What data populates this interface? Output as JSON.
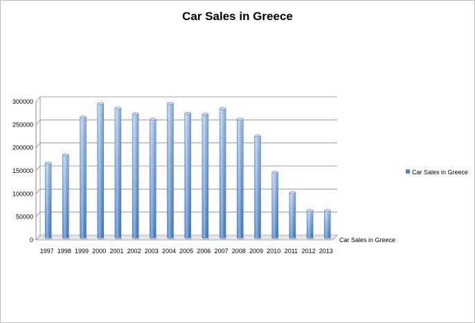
{
  "chart_data": {
    "type": "bar",
    "title": "Car Sales in Greece",
    "categories": [
      "1997",
      "1998",
      "1999",
      "2000",
      "2001",
      "2002",
      "2003",
      "2004",
      "2005",
      "2006",
      "2007",
      "2008",
      "2009",
      "2010",
      "2011",
      "2012",
      "2013"
    ],
    "series": [
      {
        "name": "Car Sales in Greece",
        "values": [
          161000,
          179000,
          261000,
          290000,
          280000,
          268000,
          256000,
          290000,
          269000,
          267000,
          279000,
          256000,
          220000,
          141000,
          97000,
          58000,
          58000
        ]
      }
    ],
    "ylim": [
      0,
      300000
    ],
    "yticks": [
      0,
      50000,
      100000,
      150000,
      200000,
      250000,
      300000
    ],
    "grid": true,
    "legend_position": "right",
    "depth_axis_label": "Car Sales in Greece",
    "bar_color": "#4a86d4",
    "bar_color_light": "#a9c9f2"
  }
}
